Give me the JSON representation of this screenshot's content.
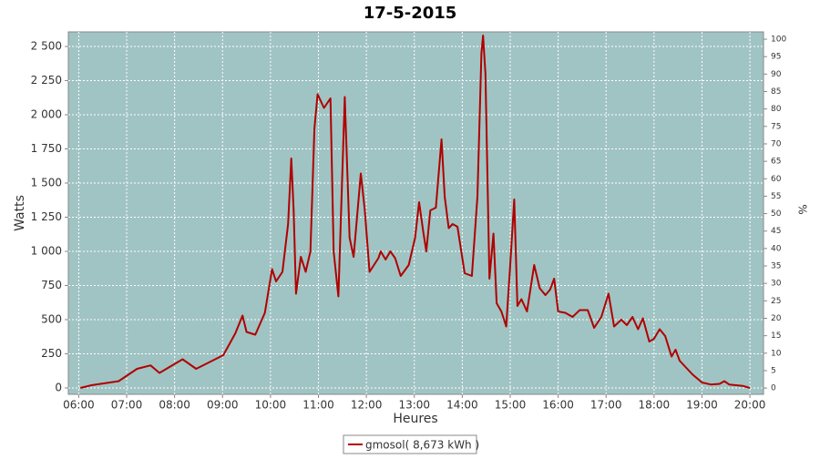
{
  "chart_data": {
    "type": "line",
    "title": "17-5-2015",
    "xlabel": "Heures",
    "ylabel": "Watts",
    "y2label": "%",
    "x": [
      "06:02",
      "06:16",
      "06:50",
      "07:13",
      "07:30",
      "07:41",
      "08:10",
      "08:27",
      "09:01",
      "09:16",
      "09:25",
      "09:30",
      "09:41",
      "09:53",
      "10:02",
      "10:07",
      "10:15",
      "10:22",
      "10:26",
      "10:29",
      "10:32",
      "10:38",
      "10:44",
      "10:50",
      "10:55",
      "10:59",
      "11:07",
      "11:15",
      "11:19",
      "11:25",
      "11:33",
      "11:39",
      "11:44",
      "11:53",
      "11:58",
      "12:04",
      "12:15",
      "12:18",
      "12:24",
      "12:30",
      "12:36",
      "12:43",
      "12:53",
      "13:01",
      "13:06",
      "13:11",
      "13:15",
      "13:20",
      "13:27",
      "13:34",
      "13:38",
      "13:43",
      "13:48",
      "13:54",
      "14:03",
      "14:12",
      "14:19",
      "14:24",
      "14:26",
      "14:29",
      "14:34",
      "14:39",
      "14:43",
      "14:49",
      "14:55",
      "15:00",
      "15:05",
      "15:09",
      "15:14",
      "15:21",
      "15:30",
      "15:37",
      "15:44",
      "15:50",
      "15:55",
      "16:00",
      "16:09",
      "16:18",
      "16:27",
      "16:37",
      "16:45",
      "16:54",
      "17:03",
      "17:10",
      "17:19",
      "17:26",
      "17:33",
      "17:40",
      "17:46",
      "17:54",
      "18:00",
      "18:07",
      "18:14",
      "18:22",
      "18:27",
      "18:32",
      "18:48",
      "19:00",
      "19:11",
      "19:22",
      "19:28",
      "19:34",
      "19:51",
      "20:00"
    ],
    "series": [
      {
        "name": "gmosol( 8,673 kWh )",
        "color": "#b00000",
        "values": [
          0,
          20,
          50,
          140,
          165,
          110,
          210,
          140,
          240,
          400,
          530,
          410,
          390,
          550,
          870,
          780,
          850,
          1200,
          1680,
          1300,
          690,
          960,
          850,
          1000,
          1900,
          2150,
          2050,
          2120,
          1000,
          670,
          2130,
          1100,
          960,
          1570,
          1300,
          850,
          950,
          1000,
          940,
          1000,
          950,
          820,
          900,
          1100,
          1360,
          1150,
          1000,
          1300,
          1320,
          1820,
          1400,
          1170,
          1200,
          1180,
          840,
          820,
          1400,
          2450,
          2580,
          2300,
          800,
          1130,
          620,
          560,
          450,
          900,
          1380,
          600,
          650,
          560,
          900,
          730,
          680,
          720,
          800,
          560,
          550,
          520,
          570,
          570,
          440,
          520,
          690,
          450,
          500,
          460,
          520,
          430,
          510,
          340,
          360,
          430,
          380,
          230,
          280,
          200,
          100,
          40,
          25,
          30,
          50,
          25,
          15,
          0
        ]
      }
    ],
    "xlim": [
      "05:47",
      "20:17"
    ],
    "xticks": [
      "06:00",
      "07:00",
      "08:00",
      "09:00",
      "10:00",
      "11:00",
      "12:00",
      "13:00",
      "14:00",
      "15:00",
      "16:00",
      "17:00",
      "18:00",
      "19:00",
      "20:00"
    ],
    "ylim": [
      -47,
      2607
    ],
    "yticks": [
      0,
      250,
      500,
      750,
      {
        "value": 1000,
        "label": "1 000"
      },
      {
        "value": 1250,
        "label": "1 250"
      },
      {
        "value": 1500,
        "label": "1 500"
      },
      {
        "value": 1750,
        "label": "1 750"
      },
      {
        "value": 2000,
        "label": "2 000"
      },
      {
        "value": 2250,
        "label": "2 250"
      },
      {
        "value": 2500,
        "label": "2 500"
      }
    ],
    "y2lim": [
      -1.8,
      102.1
    ],
    "y2ticks": [
      0,
      5,
      10,
      15,
      20,
      25,
      30,
      35,
      40,
      45,
      50,
      55,
      60,
      65,
      70,
      75,
      80,
      85,
      90,
      95,
      100
    ],
    "grid": true,
    "legend": "bottom"
  }
}
